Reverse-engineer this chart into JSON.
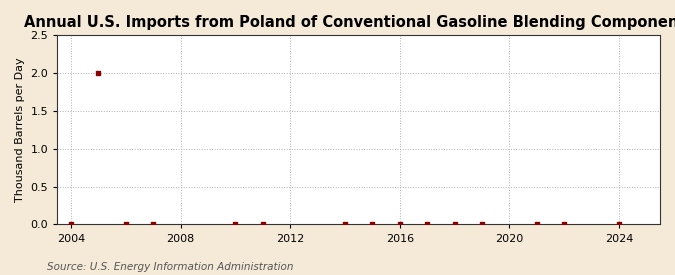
{
  "title": "Annual U.S. Imports from Poland of Conventional Gasoline Blending Components",
  "ylabel": "Thousand Barrels per Day",
  "source_text": "Source: U.S. Energy Information Administration",
  "background_color": "#f5ead8",
  "plot_background_color": "#ffffff",
  "data_points": [
    {
      "year": 2004,
      "value": 0.0
    },
    {
      "year": 2005,
      "value": 2.0
    },
    {
      "year": 2006,
      "value": 0.0
    },
    {
      "year": 2007,
      "value": 0.0
    },
    {
      "year": 2010,
      "value": 0.0
    },
    {
      "year": 2011,
      "value": 0.0
    },
    {
      "year": 2014,
      "value": 0.0
    },
    {
      "year": 2015,
      "value": 0.0
    },
    {
      "year": 2016,
      "value": 0.0
    },
    {
      "year": 2017,
      "value": 0.0
    },
    {
      "year": 2018,
      "value": 0.0
    },
    {
      "year": 2019,
      "value": 0.0
    },
    {
      "year": 2021,
      "value": 0.0
    },
    {
      "year": 2022,
      "value": 0.0
    },
    {
      "year": 2024,
      "value": 0.0
    }
  ],
  "marker_color": "#8b0000",
  "marker_size": 3,
  "xlim": [
    2003.5,
    2025.5
  ],
  "ylim": [
    0.0,
    2.5
  ],
  "yticks": [
    0.0,
    0.5,
    1.0,
    1.5,
    2.0,
    2.5
  ],
  "xticks": [
    2004,
    2008,
    2012,
    2016,
    2020,
    2024
  ],
  "grid_color": "#aaaaaa",
  "grid_style": ":",
  "grid_alpha": 0.9,
  "title_fontsize": 10.5,
  "ylabel_fontsize": 8,
  "tick_fontsize": 8,
  "source_fontsize": 7.5
}
